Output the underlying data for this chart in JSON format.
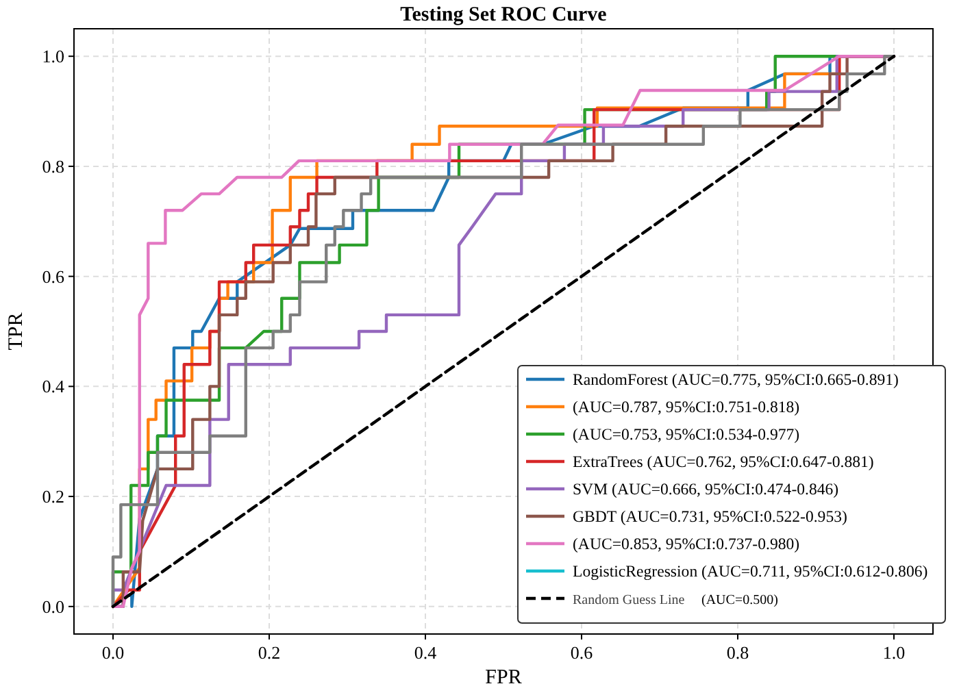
{
  "chart_data": {
    "type": "line",
    "title": "Testing Set ROC Curve",
    "xlabel": "FPR",
    "ylabel": "TPR",
    "xlim": [
      -0.05,
      1.05
    ],
    "ylim": [
      -0.05,
      1.05
    ],
    "xticks": [
      {
        "value": 0,
        "label": "0.0"
      },
      {
        "value": 0.2,
        "label": "0.2"
      },
      {
        "value": 0.4,
        "label": "0.4"
      },
      {
        "value": 0.6,
        "label": "0.6"
      },
      {
        "value": 0.8,
        "label": "0.8"
      },
      {
        "value": 1,
        "label": "1.0"
      }
    ],
    "yticks": [
      {
        "value": 0,
        "label": "0.0"
      },
      {
        "value": 0.2,
        "label": "0.2"
      },
      {
        "value": 0.4,
        "label": "0.4"
      },
      {
        "value": 0.6,
        "label": "0.6"
      },
      {
        "value": 0.8,
        "label": "0.8"
      },
      {
        "value": 1,
        "label": "1.0"
      }
    ],
    "grid": true,
    "legend": "bottom right",
    "annotations": [
      "(AUC=0.500)"
    ],
    "series": [
      {
        "name": "RandomForest (AUC=0.775, 95%CI:0.665-0.891)",
        "color": "#1f77b4",
        "x": [
          0,
          0.013,
          0.013,
          0.024,
          0.024,
          0.034,
          0.057,
          0.057,
          0.078,
          0.078,
          0.102,
          0.102,
          0.113,
          0.136,
          0.159,
          0.159,
          0.227,
          0.239,
          0.307,
          0.307,
          0.41,
          0.43,
          0.43,
          0.5,
          0.51,
          0.55,
          0.616,
          0.674,
          0.73,
          0.813,
          0.813,
          0.86,
          0.918,
          0.918,
          1
        ],
        "values": [
          0,
          0,
          0.02,
          0.02,
          0,
          0.16,
          0.25,
          0.31,
          0.31,
          0.47,
          0.47,
          0.5,
          0.5,
          0.56,
          0.56,
          0.59,
          0.657,
          0.687,
          0.687,
          0.72,
          0.72,
          0.78,
          0.81,
          0.81,
          0.84,
          0.84,
          0.873,
          0.873,
          0.906,
          0.906,
          0.938,
          0.968,
          0.968,
          1,
          1
        ]
      },
      {
        "name": "(AUC=0.787, 95%CI:0.751-0.818)",
        "color": "#ff7f0e",
        "x": [
          0,
          0.034,
          0.034,
          0.045,
          0.045,
          0.055,
          0.055,
          0.068,
          0.068,
          0.101,
          0.101,
          0.124,
          0.124,
          0.136,
          0.136,
          0.147,
          0.147,
          0.18,
          0.18,
          0.204,
          0.204,
          0.227,
          0.227,
          0.261,
          0.261,
          0.383,
          0.383,
          0.418,
          0.418,
          0.62,
          0.62,
          0.86,
          0.86,
          0.93,
          0.93,
          1
        ],
        "values": [
          0,
          0.07,
          0.25,
          0.25,
          0.34,
          0.34,
          0.375,
          0.375,
          0.41,
          0.41,
          0.47,
          0.47,
          0.5,
          0.5,
          0.56,
          0.56,
          0.59,
          0.59,
          0.625,
          0.625,
          0.72,
          0.72,
          0.78,
          0.78,
          0.81,
          0.81,
          0.84,
          0.84,
          0.873,
          0.873,
          0.906,
          0.906,
          0.968,
          0.968,
          1,
          1
        ]
      },
      {
        "name": "(AUC=0.753, 95%CI:0.534-0.977)",
        "color": "#2ca02c",
        "x": [
          0,
          0,
          0.023,
          0.023,
          0.045,
          0.045,
          0.057,
          0.057,
          0.068,
          0.068,
          0.136,
          0.136,
          0.17,
          0.193,
          0.216,
          0.216,
          0.239,
          0.239,
          0.29,
          0.29,
          0.325,
          0.325,
          0.34,
          0.34,
          0.443,
          0.443,
          0.604,
          0.604,
          0.837,
          0.837,
          0.848,
          0.848,
          1
        ],
        "values": [
          0,
          0.063,
          0.063,
          0.22,
          0.22,
          0.28,
          0.28,
          0.31,
          0.31,
          0.375,
          0.375,
          0.47,
          0.47,
          0.5,
          0.5,
          0.56,
          0.56,
          0.625,
          0.625,
          0.657,
          0.657,
          0.72,
          0.72,
          0.78,
          0.78,
          0.84,
          0.84,
          0.903,
          0.903,
          0.936,
          0.936,
          1,
          1
        ]
      },
      {
        "name": "ExtraTrees (AUC=0.762, 95%CI:0.647-0.881)",
        "color": "#d62728",
        "x": [
          0,
          0.02,
          0.034,
          0.034,
          0.08,
          0.08,
          0.091,
          0.091,
          0.124,
          0.124,
          0.136,
          0.136,
          0.17,
          0.17,
          0.18,
          0.18,
          0.227,
          0.227,
          0.239,
          0.239,
          0.25,
          0.25,
          0.261,
          0.261,
          0.338,
          0.338,
          0.616,
          0.616,
          0.93,
          0.93,
          1
        ],
        "values": [
          0,
          0.03,
          0.03,
          0.1,
          0.22,
          0.31,
          0.31,
          0.44,
          0.44,
          0.5,
          0.5,
          0.59,
          0.59,
          0.625,
          0.625,
          0.657,
          0.657,
          0.69,
          0.69,
          0.72,
          0.72,
          0.75,
          0.75,
          0.78,
          0.78,
          0.81,
          0.81,
          0.903,
          0.903,
          1,
          1
        ]
      },
      {
        "name": "SVM (AUC=0.666, 95%CI:0.474-0.846)",
        "color": "#9467bd",
        "x": [
          0,
          0,
          0.013,
          0.068,
          0.124,
          0.124,
          0.148,
          0.148,
          0.227,
          0.227,
          0.315,
          0.315,
          0.35,
          0.35,
          0.443,
          0.443,
          0.46,
          0.49,
          0.523,
          0.523,
          0.578,
          0.578,
          0.628,
          0.628,
          0.73,
          0.73,
          0.84,
          0.84,
          0.927,
          0.927,
          1
        ],
        "values": [
          0,
          0.03,
          0.03,
          0.22,
          0.22,
          0.34,
          0.34,
          0.44,
          0.44,
          0.47,
          0.47,
          0.5,
          0.5,
          0.53,
          0.53,
          0.657,
          0.69,
          0.75,
          0.75,
          0.81,
          0.81,
          0.84,
          0.84,
          0.873,
          0.873,
          0.903,
          0.903,
          0.936,
          0.936,
          1,
          1
        ]
      },
      {
        "name": "GBDT (AUC=0.731, 95%CI:0.522-0.953)",
        "color": "#8c564b",
        "x": [
          0,
          0.013,
          0.013,
          0.034,
          0.038,
          0.057,
          0.091,
          0.102,
          0.102,
          0.124,
          0.124,
          0.136,
          0.136,
          0.159,
          0.159,
          0.17,
          0.17,
          0.205,
          0.205,
          0.227,
          0.227,
          0.25,
          0.25,
          0.26,
          0.26,
          0.284,
          0.284,
          0.558,
          0.558,
          0.64,
          0.64,
          0.708,
          0.708,
          0.908,
          0.908,
          0.918,
          0.918,
          0.94,
          0.94,
          1
        ],
        "values": [
          0,
          0,
          0.063,
          0.063,
          0.156,
          0.25,
          0.25,
          0.25,
          0.34,
          0.34,
          0.4,
          0.4,
          0.53,
          0.53,
          0.56,
          0.56,
          0.59,
          0.59,
          0.625,
          0.625,
          0.657,
          0.657,
          0.69,
          0.69,
          0.75,
          0.75,
          0.78,
          0.78,
          0.81,
          0.81,
          0.84,
          0.84,
          0.873,
          0.873,
          0.936,
          0.936,
          0.968,
          0.968,
          1,
          1
        ]
      },
      {
        "name": "(AUC=0.853, 95%CI:0.737-0.980)",
        "color": "#e377c2",
        "x": [
          0,
          0.013,
          0.024,
          0.034,
          0.034,
          0.045,
          0.045,
          0.067,
          0.067,
          0.089,
          0.113,
          0.136,
          0.159,
          0.216,
          0.238,
          0.431,
          0.431,
          0.55,
          0.57,
          0.653,
          0.675,
          0.86,
          0.93,
          1
        ],
        "values": [
          0,
          0,
          0.07,
          0.1,
          0.53,
          0.56,
          0.66,
          0.66,
          0.72,
          0.72,
          0.75,
          0.75,
          0.78,
          0.78,
          0.81,
          0.81,
          0.84,
          0.84,
          0.875,
          0.875,
          0.938,
          0.938,
          1,
          1
        ]
      },
      {
        "name": "LogisticRegression (AUC=0.711, 95%CI:0.612-0.806)",
        "color": "#17becf"
      },
      {
        "color": "#7f7f7f",
        "x": [
          0,
          0,
          0.01,
          0.01,
          0.057,
          0.057,
          0.124,
          0.124,
          0.17,
          0.17,
          0.205,
          0.205,
          0.227,
          0.227,
          0.239,
          0.239,
          0.273,
          0.273,
          0.284,
          0.284,
          0.295,
          0.295,
          0.318,
          0.318,
          0.33,
          0.33,
          0.36,
          0.523,
          0.523,
          0.756,
          0.756,
          0.803,
          0.803,
          0.93,
          0.93,
          0.94,
          0.94,
          0.988,
          0.988,
          1
        ],
        "values": [
          0,
          0.09,
          0.09,
          0.185,
          0.185,
          0.28,
          0.28,
          0.31,
          0.31,
          0.47,
          0.47,
          0.5,
          0.5,
          0.53,
          0.53,
          0.59,
          0.59,
          0.657,
          0.657,
          0.69,
          0.69,
          0.72,
          0.72,
          0.75,
          0.75,
          0.78,
          0.78,
          0.78,
          0.84,
          0.84,
          0.873,
          0.873,
          0.903,
          0.903,
          0.936,
          0.936,
          0.968,
          0.968,
          1,
          1
        ]
      },
      {
        "name": "Random Guess Line",
        "color": "#000000",
        "line_style": "dashed",
        "x": [
          0,
          1
        ],
        "values": [
          0,
          1
        ]
      }
    ]
  }
}
